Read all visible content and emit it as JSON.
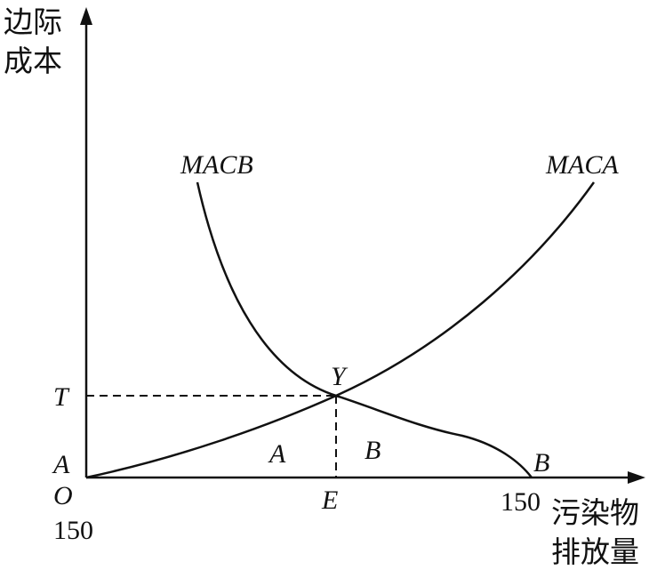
{
  "y_axis_label": {
    "lines": [
      "边际",
      "成本"
    ]
  },
  "x_axis_label": {
    "lines": [
      "污染物",
      "排放量"
    ]
  },
  "curves": [
    {
      "label": "MACB"
    },
    {
      "label": "MACA"
    }
  ],
  "points": {
    "intersection": "Y",
    "cost_level": "T",
    "emission_level": "E",
    "origin": "O",
    "origin_a": "A",
    "origin_value": "150",
    "axis_end_value": "150",
    "axis_end_b": "B"
  },
  "regions": [
    "A",
    "B"
  ]
}
